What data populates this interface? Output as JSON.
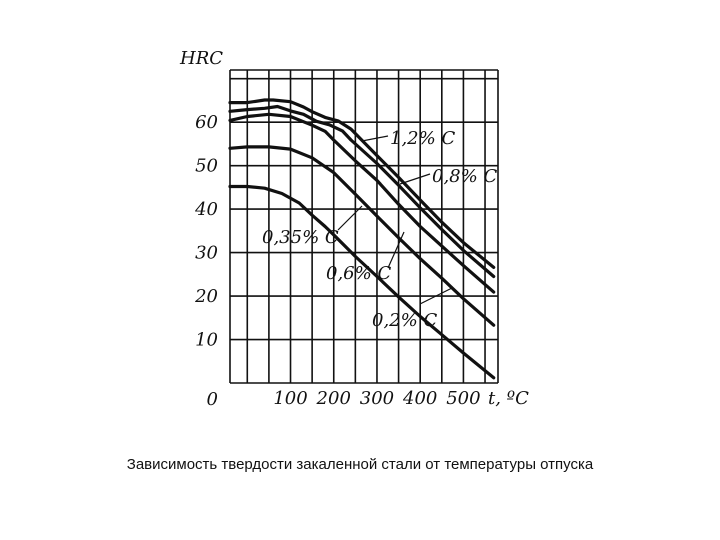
{
  "caption": "Зависимость твердости закаленной стали от температуры отпуска",
  "chart_data": {
    "type": "line",
    "title": "",
    "xlabel": "t, ºC",
    "ylabel": "HRC",
    "xlim": [
      -40,
      580
    ],
    "ylim": [
      0,
      72
    ],
    "grid": true,
    "x_tick_labels": [
      "100",
      "200",
      "300",
      "400",
      "500"
    ],
    "y_tick_labels": [
      "0",
      "10",
      "20",
      "30",
      "40",
      "50",
      "60"
    ],
    "series": [
      {
        "name": "1,2% C",
        "x": [
          -40,
          0,
          40,
          60,
          100,
          130,
          150,
          180,
          210,
          240,
          300,
          350,
          400,
          450,
          500,
          570
        ],
        "y": [
          64.5,
          64.5,
          65.1,
          65.1,
          64.7,
          63.5,
          62.4,
          61.1,
          60.3,
          58.4,
          52.3,
          47.3,
          42.1,
          37.0,
          32.3,
          26.6
        ]
      },
      {
        "name": "0,8% C",
        "x": [
          -40,
          0,
          40,
          70,
          100,
          130,
          160,
          190,
          220,
          240,
          300,
          350,
          400,
          450,
          500,
          570
        ],
        "y": [
          62.5,
          62.9,
          63.2,
          63.6,
          62.6,
          61.8,
          60.2,
          59.4,
          58.0,
          55.9,
          50.5,
          45.5,
          40.3,
          35.3,
          30.5,
          24.5
        ]
      },
      {
        "name": "0,6% C",
        "x": [
          -40,
          0,
          50,
          100,
          150,
          180,
          200,
          250,
          300,
          350,
          400,
          450,
          500,
          570
        ],
        "y": [
          60.4,
          61.3,
          61.8,
          61.3,
          59.3,
          57.9,
          55.9,
          51.1,
          46.6,
          41.1,
          36.0,
          31.5,
          27.0,
          20.9
        ]
      },
      {
        "name": "0,35% C",
        "x": [
          -40,
          0,
          50,
          100,
          150,
          200,
          250,
          300,
          350,
          400,
          450,
          500,
          570
        ],
        "y": [
          54.0,
          54.3,
          54.3,
          53.8,
          51.8,
          48.4,
          43.4,
          38.4,
          33.4,
          28.6,
          24.1,
          19.4,
          13.3
        ]
      },
      {
        "name": "0,2% C",
        "x": [
          -40,
          0,
          40,
          80,
          120,
          150,
          180,
          200,
          250,
          300,
          350,
          400,
          450,
          500,
          570
        ],
        "y": [
          45.2,
          45.2,
          44.8,
          43.6,
          41.4,
          38.6,
          36.0,
          34.1,
          29.1,
          24.5,
          19.8,
          15.3,
          11.1,
          6.9,
          1.2
        ]
      }
    ],
    "annotations": [
      {
        "text": "1,2% C",
        "series": "1,2% C"
      },
      {
        "text": "0,8% C",
        "series": "0,8% C"
      },
      {
        "text": "0,35% C",
        "series": "0,35% C"
      },
      {
        "text": "0,6% C",
        "series": "0,6% C"
      },
      {
        "text": "0,2% C",
        "series": "0,2% C"
      }
    ]
  }
}
